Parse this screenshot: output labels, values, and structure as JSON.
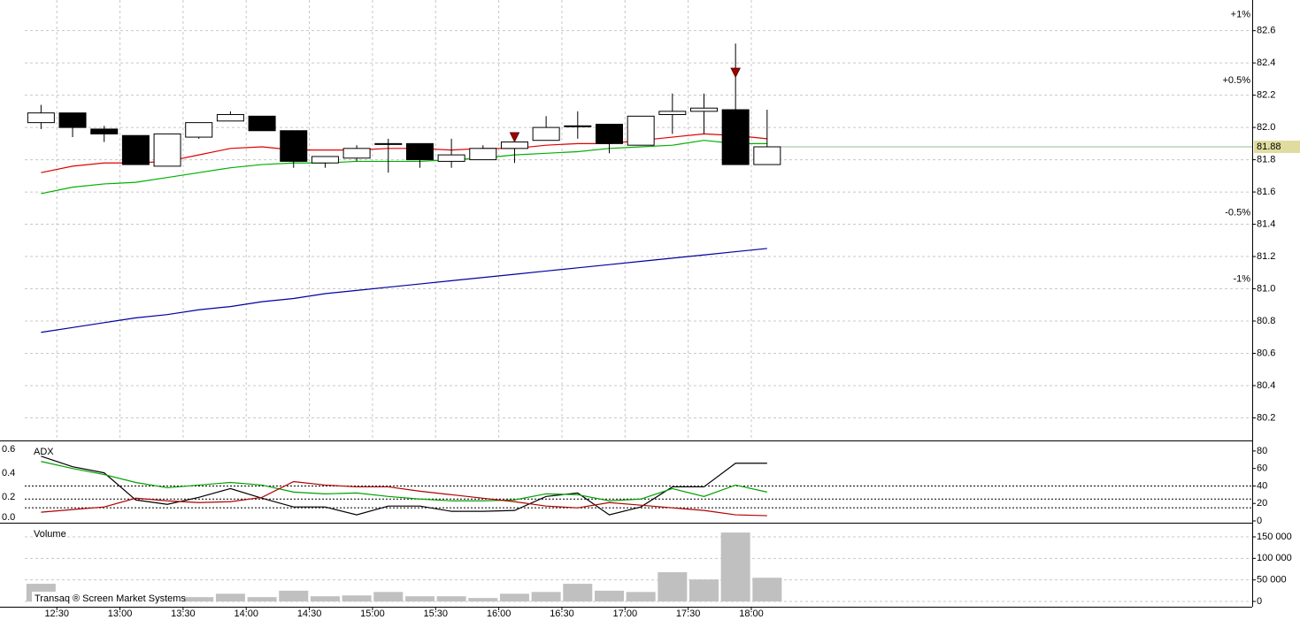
{
  "chart_data": [
    {
      "type": "candlestick",
      "ylim": [
        80.06,
        82.79
      ],
      "yticks": [
        82.6,
        82.4,
        82.2,
        {
          "value": 82.0,
          "label": "82.0"
        },
        81.8,
        81.6,
        81.4,
        81.2,
        {
          "value": 81.0,
          "label": "81.0"
        },
        80.8,
        80.6,
        80.4,
        80.2
      ],
      "pct_ticks": [
        {
          "value": 82.7,
          "label": "+1%"
        },
        {
          "value": 82.29,
          "label": "+0.5%"
        },
        {
          "value": 81.47,
          "label": "-0.5%"
        },
        {
          "value": 81.06,
          "label": "-1%"
        }
      ],
      "pct_colors": {
        "positive": "#008000",
        "negative": "#a00000"
      },
      "last_price": 81.88,
      "last_price_color": "#8fbc8f",
      "last_price_box": "#e0dca0",
      "grid": true,
      "open": [
        82.03,
        82.09,
        81.99,
        81.95,
        81.76,
        81.94,
        82.04,
        82.07,
        81.98,
        81.78,
        81.81,
        81.9,
        81.9,
        81.79,
        81.8,
        81.87,
        81.92,
        82.01,
        82.02,
        81.89,
        82.08,
        82.1,
        82.11,
        81.77
      ],
      "high": [
        82.14,
        82.09,
        82.01,
        81.95,
        81.96,
        82.03,
        82.1,
        82.07,
        81.98,
        81.82,
        81.89,
        81.93,
        81.9,
        81.93,
        81.89,
        81.96,
        82.07,
        82.1,
        82.02,
        82.07,
        82.21,
        82.21,
        82.52,
        82.11
      ],
      "low": [
        81.99,
        81.94,
        81.91,
        81.77,
        81.76,
        81.93,
        82.04,
        81.98,
        81.75,
        81.75,
        81.79,
        81.72,
        81.75,
        81.75,
        81.8,
        81.78,
        81.92,
        81.93,
        81.84,
        81.89,
        81.96,
        81.96,
        81.77,
        81.77
      ],
      "close": [
        82.09,
        82.0,
        81.96,
        81.77,
        81.96,
        82.03,
        82.08,
        81.98,
        81.79,
        81.82,
        81.87,
        81.9,
        81.8,
        81.83,
        81.87,
        81.91,
        82.0,
        82.01,
        81.9,
        82.07,
        82.1,
        82.12,
        81.77,
        81.88
      ],
      "series": [
        {
          "color": "#e00000",
          "values": [
            81.72,
            81.76,
            81.78,
            81.78,
            81.79,
            81.83,
            81.87,
            81.88,
            81.86,
            81.86,
            81.86,
            81.87,
            81.87,
            81.86,
            81.87,
            81.87,
            81.89,
            81.9,
            81.9,
            81.92,
            81.94,
            81.96,
            81.95,
            81.93
          ]
        },
        {
          "color": "#00b000",
          "values": [
            81.59,
            81.63,
            81.65,
            81.66,
            81.69,
            81.72,
            81.75,
            81.77,
            81.78,
            81.78,
            81.79,
            81.79,
            81.79,
            81.8,
            81.81,
            81.83,
            81.84,
            81.85,
            81.87,
            81.88,
            81.89,
            81.92,
            81.9,
            81.9
          ]
        },
        {
          "color": "#0000a0",
          "values": [
            80.73,
            80.76,
            80.79,
            80.82,
            80.84,
            80.87,
            80.89,
            80.92,
            80.94,
            80.97,
            80.99,
            81.01,
            81.03,
            81.05,
            81.07,
            81.09,
            81.11,
            81.13,
            81.15,
            81.17,
            81.19,
            81.21,
            81.23,
            81.25
          ]
        }
      ],
      "signals": {
        "color": "#a00000",
        "x": [
          967.5,
          1072.5
        ],
        "values": [
          81.94,
          82.34
        ]
      }
    },
    {
      "type": "line",
      "title": "ADX",
      "ylim": [
        -1,
        91
      ],
      "yticks": [
        0,
        20,
        40,
        60,
        80
      ],
      "y2lim": [
        -0.007,
        0.667
      ],
      "y2ticks": [
        {
          "value": 0,
          "label": "0.0"
        },
        0.2,
        0.4,
        0.6
      ],
      "levels": [
        40,
        25,
        15
      ],
      "series": [
        {
          "color": "#000000",
          "values": [
            74,
            62,
            55,
            24,
            19,
            27,
            37,
            26,
            16,
            16,
            7,
            17,
            17,
            11,
            11,
            12,
            28,
            32,
            7,
            16,
            39,
            39,
            66,
            66
          ]
        },
        {
          "color": "#00a000",
          "values": [
            68,
            60,
            53,
            44,
            38,
            41,
            44,
            41,
            33,
            31,
            32,
            28,
            25,
            23,
            23,
            24,
            31,
            30,
            23,
            25,
            37,
            28,
            41,
            33
          ]
        },
        {
          "color": "#b00000",
          "values": [
            10,
            13,
            16,
            26,
            23,
            21,
            22,
            27,
            45,
            41,
            39,
            39,
            34,
            30,
            26,
            22,
            17,
            15,
            21,
            18,
            15,
            12,
            7,
            6
          ]
        }
      ]
    },
    {
      "type": "bar",
      "title": "Volume",
      "watermark": "Transaq ® Screen Market Systems",
      "color": "#c0c0c0",
      "ylim": [
        -12300,
        180800
      ],
      "yticks": [
        0,
        {
          "value": 50000,
          "label": "50 000"
        },
        {
          "value": 100000,
          "label": "100 000"
        },
        {
          "value": 150000,
          "label": "150 000"
        }
      ],
      "xlim": [
        723,
        1318
      ],
      "xticks": [
        {
          "value": 750,
          "label": "12:30"
        },
        {
          "value": 780,
          "label": "13:00"
        },
        {
          "value": 810,
          "label": "13:30"
        },
        {
          "value": 840,
          "label": "14:00"
        },
        {
          "value": 870,
          "label": "14:30"
        },
        {
          "value": 900,
          "label": "15:00"
        },
        {
          "value": 930,
          "label": "15:30"
        },
        {
          "value": 960,
          "label": "16:00"
        },
        {
          "value": 990,
          "label": "16:30"
        },
        {
          "value": 1020,
          "label": "17:00"
        },
        {
          "value": 1050,
          "label": "17:30"
        },
        {
          "value": 1080,
          "label": "18:00"
        }
      ],
      "x": [
        742.5,
        757.5,
        772.5,
        787.5,
        802.5,
        817.5,
        832.5,
        847.5,
        862.5,
        877.5,
        892.5,
        907.5,
        922.5,
        937.5,
        952.5,
        967.5,
        982.5,
        997.5,
        1012.5,
        1027.5,
        1042.5,
        1057.5,
        1072.5,
        1087.5
      ],
      "values": [
        41000,
        20000,
        15000,
        12000,
        10000,
        10000,
        18000,
        10000,
        25000,
        12000,
        14000,
        22000,
        12000,
        12000,
        8000,
        18000,
        22000,
        41000,
        25000,
        22000,
        68000,
        51000,
        160000,
        55000
      ]
    }
  ]
}
